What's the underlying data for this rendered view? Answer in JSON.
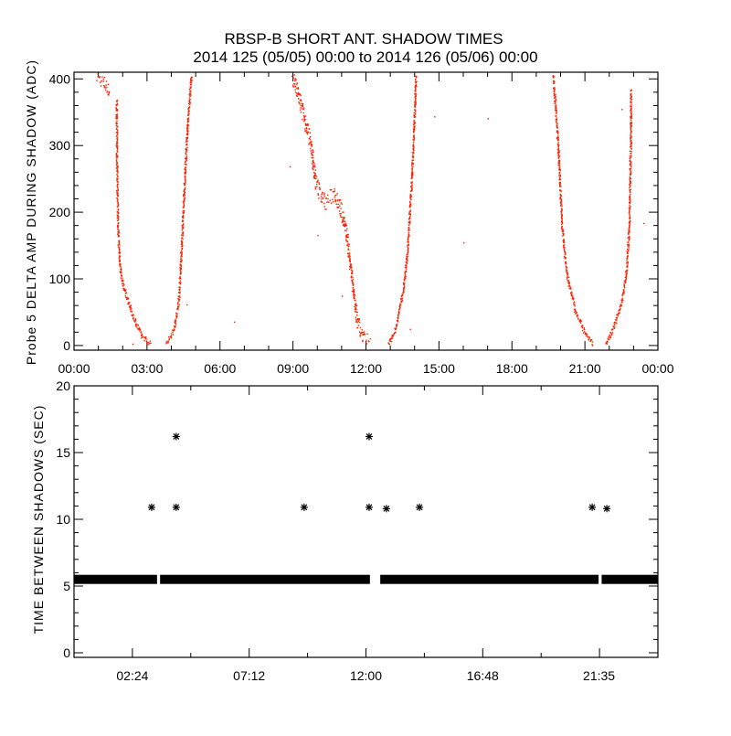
{
  "title": "RBSP-B SHORT ANT. SHADOW TIMES",
  "subtitle": "2014 125 (05/05) 00:00 to 2014 126 (05/06) 00:00",
  "colors": {
    "data": "#ff2200",
    "axis": "#000000",
    "background": "#ffffff"
  },
  "chart_data": [
    {
      "type": "scatter",
      "ylabel": "Probe 5 DELTA AMP DURING SHADOW (ADC)",
      "xlabel": "",
      "xlim": [
        0,
        24
      ],
      "ylim": [
        -7,
        410
      ],
      "x_unit": "hours",
      "xticks": [
        0,
        3,
        6,
        9,
        12,
        15,
        18,
        21,
        24
      ],
      "xtick_labels": [
        "00:00",
        "03:00",
        "06:00",
        "09:00",
        "12:00",
        "15:00",
        "18:00",
        "21:00",
        "00:00"
      ],
      "yticks": [
        0,
        100,
        200,
        300,
        400
      ],
      "ytick_labels": [
        "0",
        "100",
        "200",
        "300",
        "400"
      ],
      "grid": false,
      "segments": [
        {
          "name": "pass1-start",
          "scatter": 20,
          "points": [
            [
              0.9,
              405
            ],
            [
              1.2,
              395
            ],
            [
              1.45,
              380
            ]
          ]
        },
        {
          "name": "pass1-descend",
          "scatter": 8,
          "points": [
            [
              1.73,
              370
            ],
            [
              1.75,
              250
            ],
            [
              1.8,
              162
            ],
            [
              1.9,
              107
            ],
            [
              2.03,
              87
            ],
            [
              2.4,
              45
            ],
            [
              2.78,
              14
            ],
            [
              3.15,
              3
            ]
          ]
        },
        {
          "name": "pass1-ascend",
          "scatter": 6,
          "points": [
            [
              3.75,
              1
            ],
            [
              4.1,
              25
            ],
            [
              4.28,
              66
            ],
            [
              4.39,
              135
            ],
            [
              4.47,
              203
            ],
            [
              4.62,
              313
            ],
            [
              4.8,
              405
            ]
          ]
        },
        {
          "name": "pass2-descend",
          "scatter": 25,
          "points": [
            [
              8.97,
              405
            ],
            [
              9.35,
              355
            ],
            [
              9.73,
              300
            ],
            [
              9.9,
              245
            ],
            [
              10.3,
              215
            ],
            [
              10.7,
              230
            ],
            [
              11.0,
              200
            ],
            [
              11.2,
              162
            ],
            [
              11.4,
              107
            ],
            [
              11.6,
              38
            ],
            [
              11.87,
              11
            ],
            [
              12.17,
              3
            ]
          ]
        },
        {
          "name": "pass2-ascend",
          "scatter": 6,
          "points": [
            [
              12.9,
              2
            ],
            [
              13.2,
              25
            ],
            [
              13.5,
              80
            ],
            [
              13.67,
              135
            ],
            [
              13.86,
              245
            ],
            [
              13.97,
              340
            ],
            [
              14.04,
              405
            ]
          ]
        },
        {
          "name": "pass3-descend",
          "scatter": 8,
          "points": [
            [
              19.68,
              405
            ],
            [
              19.86,
              313
            ],
            [
              20.05,
              176
            ],
            [
              20.24,
              107
            ],
            [
              20.6,
              52
            ],
            [
              21.0,
              18
            ],
            [
              21.3,
              2
            ]
          ]
        },
        {
          "name": "pass3-ascend",
          "scatter": 6,
          "points": [
            [
              21.85,
              1
            ],
            [
              22.2,
              32
            ],
            [
              22.5,
              66
            ],
            [
              22.68,
              107
            ],
            [
              22.8,
              176
            ],
            [
              22.87,
              313
            ],
            [
              22.87,
              385
            ]
          ]
        }
      ],
      "outliers": [
        [
          6.57,
          36
        ],
        [
          8.86,
          269
        ],
        [
          4.62,
          62
        ],
        [
          16.0,
          155
        ],
        [
          17.0,
          341
        ],
        [
          14.8,
          344
        ],
        [
          23.4,
          184
        ],
        [
          10.0,
          166
        ],
        [
          13.8,
          25
        ],
        [
          11.0,
          75
        ],
        [
          2.4,
          3
        ],
        [
          22.5,
          355
        ]
      ]
    },
    {
      "type": "scatter",
      "marker": "asterisk",
      "ylabel": "TIME BETWEEN SHADOWS (SEC)",
      "xlabel": "",
      "xlim": [
        0,
        24
      ],
      "ylim": [
        0,
        20
      ],
      "x_unit": "hours",
      "xticks": [
        2.4,
        7.2,
        12.0,
        16.8,
        21.58
      ],
      "xtick_labels": [
        "02:24",
        "07:12",
        "12:00",
        "16:48",
        "21:35"
      ],
      "yticks": [
        0,
        5,
        10,
        15,
        20
      ],
      "ytick_labels": [
        "0",
        "5",
        "10",
        "15",
        "20"
      ],
      "grid": false,
      "baseline_value": 5.5,
      "baseline_ranges": [
        [
          0,
          3.3
        ],
        [
          3.65,
          12.05
        ],
        [
          12.7,
          21.45
        ],
        [
          21.8,
          24
        ]
      ],
      "points": [
        [
          3.19,
          10.9
        ],
        [
          4.2,
          10.9
        ],
        [
          4.2,
          16.2
        ],
        [
          9.46,
          10.9
        ],
        [
          12.13,
          10.9
        ],
        [
          12.13,
          16.2
        ],
        [
          12.84,
          10.8
        ],
        [
          14.2,
          10.9
        ],
        [
          21.3,
          10.9
        ],
        [
          21.9,
          10.8
        ]
      ]
    }
  ]
}
